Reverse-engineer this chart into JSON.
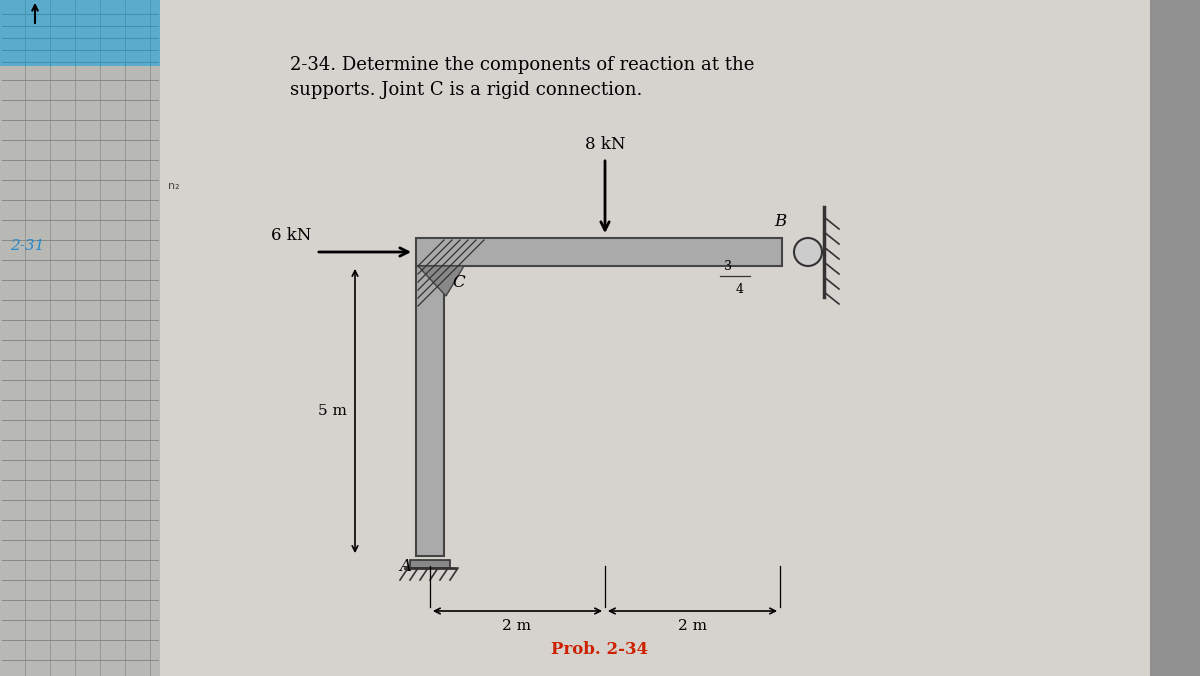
{
  "title_line1": "2-34. Determine the components of reaction at the",
  "title_line2": "supports. Joint C is a rigid connection.",
  "prob_label": "Prob. 2-34",
  "side_label": "2-31",
  "load_8kN_label": "8 kN",
  "load_6kN_label": "6 kN",
  "dim_5m_label": "5 m",
  "dim_2m_label1": "2 m",
  "dim_2m_label2": "2 m",
  "label_A": "A",
  "label_B": "B",
  "label_C": "C",
  "bg_color": "#c8c8c8",
  "page_color": "#d8d4d0",
  "left_panel_color": "#b0b0b0",
  "blue_band_color": "#6ab0d0",
  "struct_fill": "#aaaaaa",
  "struct_edge": "#444444",
  "prob_color": "#cc2200",
  "side_label_color": "#2288cc"
}
